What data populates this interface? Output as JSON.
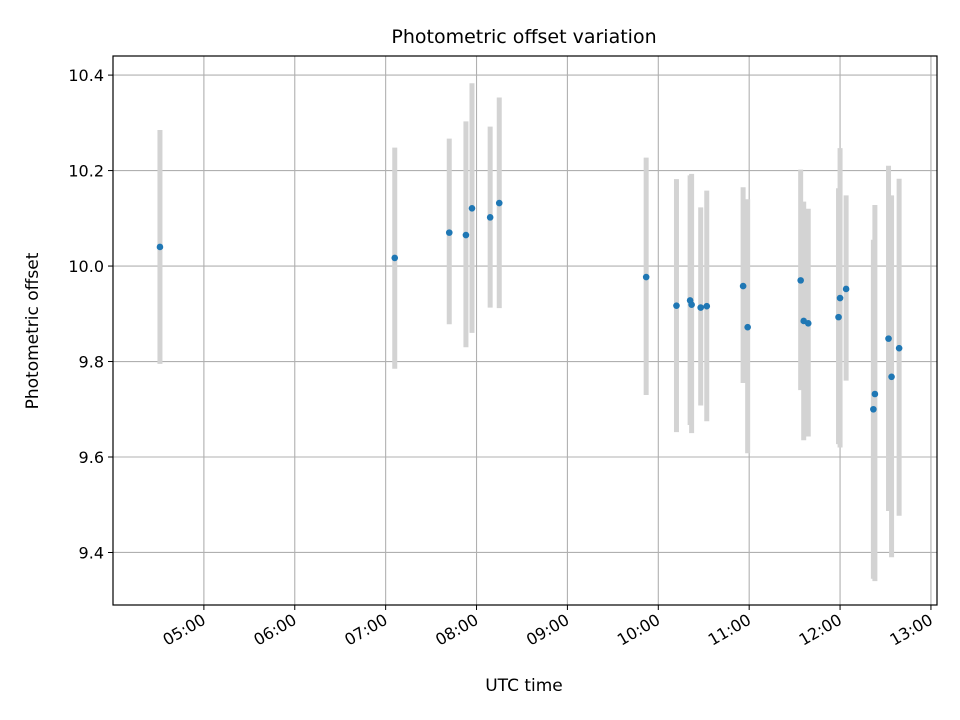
{
  "chart_data": {
    "type": "scatter",
    "title": "Photometric offset variation",
    "xlabel": "UTC time",
    "ylabel": "Photometric offset",
    "x_ticks": [
      "05:00",
      "06:00",
      "07:00",
      "08:00",
      "09:00",
      "10:00",
      "11:00",
      "12:00",
      "13:00"
    ],
    "y_ticks": [
      "9.4",
      "9.6",
      "9.8",
      "10.0",
      "10.2",
      "10.4"
    ],
    "xlim": [
      "04:00",
      "13:04"
    ],
    "ylim": [
      9.29,
      10.44
    ],
    "grid": true,
    "colors": {
      "point": "#1f77b4",
      "errorbar": "#d3d3d3",
      "grid": "#b0b0b0"
    },
    "points": [
      {
        "x": "04:31",
        "y": 10.04,
        "ylow": 9.795,
        "yhigh": 10.285
      },
      {
        "x": "07:06",
        "y": 10.017,
        "ylow": 9.785,
        "yhigh": 10.248
      },
      {
        "x": "07:42",
        "y": 10.07,
        "ylow": 9.878,
        "yhigh": 10.267
      },
      {
        "x": "07:53",
        "y": 10.065,
        "ylow": 9.83,
        "yhigh": 10.303
      },
      {
        "x": "07:57",
        "y": 10.121,
        "ylow": 9.86,
        "yhigh": 10.383
      },
      {
        "x": "08:09",
        "y": 10.102,
        "ylow": 9.913,
        "yhigh": 10.292
      },
      {
        "x": "08:15",
        "y": 10.132,
        "ylow": 9.912,
        "yhigh": 10.353
      },
      {
        "x": "09:52",
        "y": 9.977,
        "ylow": 9.73,
        "yhigh": 10.227
      },
      {
        "x": "10:12",
        "y": 9.917,
        "ylow": 9.652,
        "yhigh": 10.182
      },
      {
        "x": "10:21",
        "y": 9.928,
        "ylow": 9.667,
        "yhigh": 10.19
      },
      {
        "x": "10:22",
        "y": 9.919,
        "ylow": 9.65,
        "yhigh": 10.193
      },
      {
        "x": "10:28",
        "y": 9.913,
        "ylow": 9.708,
        "yhigh": 10.123
      },
      {
        "x": "10:32",
        "y": 9.916,
        "ylow": 9.675,
        "yhigh": 10.158
      },
      {
        "x": "10:56",
        "y": 9.958,
        "ylow": 9.755,
        "yhigh": 10.165
      },
      {
        "x": "10:59",
        "y": 9.872,
        "ylow": 9.608,
        "yhigh": 10.14
      },
      {
        "x": "11:34",
        "y": 9.97,
        "ylow": 9.74,
        "yhigh": 10.202
      },
      {
        "x": "11:36",
        "y": 9.885,
        "ylow": 9.635,
        "yhigh": 10.135
      },
      {
        "x": "11:39",
        "y": 9.88,
        "ylow": 9.643,
        "yhigh": 10.12
      },
      {
        "x": "11:59",
        "y": 9.893,
        "ylow": 9.627,
        "yhigh": 10.163
      },
      {
        "x": "12:00",
        "y": 9.933,
        "ylow": 9.62,
        "yhigh": 10.247
      },
      {
        "x": "12:04",
        "y": 9.952,
        "ylow": 9.76,
        "yhigh": 10.148
      },
      {
        "x": "12:22",
        "y": 9.7,
        "ylow": 9.345,
        "yhigh": 10.055
      },
      {
        "x": "12:23",
        "y": 9.732,
        "ylow": 9.34,
        "yhigh": 10.128
      },
      {
        "x": "12:32",
        "y": 9.848,
        "ylow": 9.487,
        "yhigh": 10.21
      },
      {
        "x": "12:34",
        "y": 9.768,
        "ylow": 9.39,
        "yhigh": 10.148
      },
      {
        "x": "12:39",
        "y": 9.828,
        "ylow": 9.477,
        "yhigh": 10.183
      }
    ]
  }
}
